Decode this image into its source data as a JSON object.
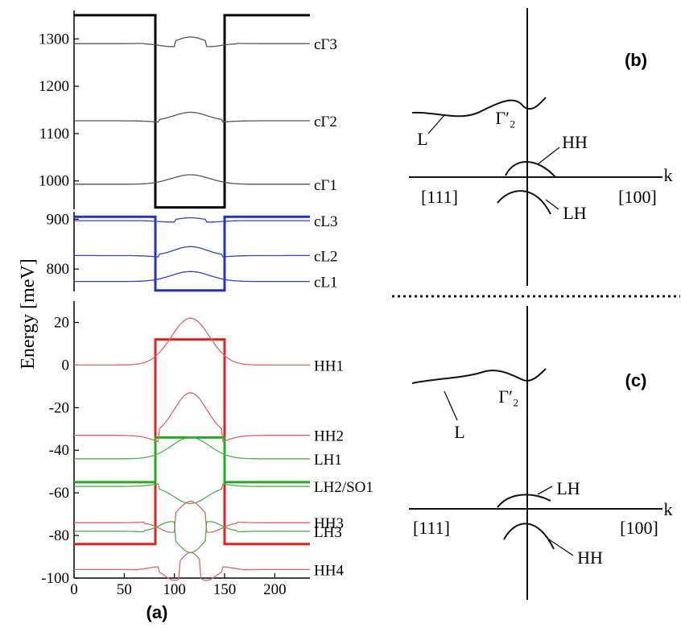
{
  "panel_labels": {
    "a": "(a)",
    "b": "(b)",
    "c": "(c)"
  },
  "chart_data": [
    {
      "type": "line",
      "ylabel": "Energy [meV]",
      "xlabel": "",
      "xlim": [
        0,
        235
      ],
      "x_ticks": [
        "0",
        "50",
        "100",
        "150",
        "200"
      ],
      "segments": [
        {
          "ylim": [
            940,
            1360
          ],
          "y_ticks": [
            "1000",
            "1100",
            "1200",
            "1300"
          ]
        },
        {
          "ylim": [
            755,
            915
          ],
          "y_ticks": [
            "800",
            "900"
          ]
        },
        {
          "ylim": [
            -100,
            30
          ],
          "y_ticks": [
            "20",
            "0",
            "-20",
            "-40",
            "-60",
            "-80",
            "-100"
          ]
        }
      ],
      "wells": [
        {
          "color": "#000000",
          "segment": 0,
          "x": [
            0,
            81,
            81,
            150,
            150,
            235
          ],
          "y": [
            1350,
            1350,
            944,
            944,
            1350,
            1350
          ]
        },
        {
          "color": "#2233bb",
          "segment": 1,
          "x": [
            0,
            81,
            81,
            150,
            150,
            235
          ],
          "y": [
            905,
            905,
            757,
            757,
            905,
            905
          ]
        },
        {
          "color": "#dd2222",
          "segment": 2,
          "x": [
            0,
            81,
            81,
            150,
            150,
            235
          ],
          "y": [
            -84,
            -84,
            12,
            12,
            -84,
            -84
          ]
        },
        {
          "color": "#22aa22",
          "segment": 2,
          "x": [
            0,
            81,
            81,
            150,
            150,
            235
          ],
          "y": [
            -55,
            -55,
            -34,
            -34,
            -55,
            -55
          ]
        }
      ],
      "levels": [
        {
          "label": "cΓ3",
          "segment": 0,
          "color": "#555555",
          "energy": 1290,
          "bump": 14,
          "osc": 3
        },
        {
          "label": "cΓ2",
          "segment": 0,
          "color": "#555555",
          "energy": 1127,
          "bump": 18,
          "osc": 2
        },
        {
          "label": "cΓ1",
          "segment": 0,
          "color": "#555555",
          "energy": 993,
          "bump": 20,
          "osc": 1
        },
        {
          "label": "cL3",
          "segment": 1,
          "color": "#3344bb",
          "energy": 897,
          "bump": 6,
          "osc": 3
        },
        {
          "label": "cL2",
          "segment": 1,
          "color": "#3344bb",
          "energy": 827,
          "bump": 18,
          "osc": 2
        },
        {
          "label": "cL1",
          "segment": 1,
          "color": "#3344bb",
          "energy": 775,
          "bump": 20,
          "osc": 1
        },
        {
          "label": "HH1",
          "segment": 2,
          "color": "#dd6666",
          "energy": 0,
          "bump": 22,
          "osc": 1
        },
        {
          "label": "HH2",
          "segment": 2,
          "color": "#dd6666",
          "energy": -33,
          "bump": 20,
          "osc": 2
        },
        {
          "label": "LH1",
          "segment": 2,
          "color": "#55aa55",
          "energy": -44,
          "bump": 10,
          "osc": 1
        },
        {
          "label": "LH2/SO1",
          "segment": 2,
          "color": "#55aa55",
          "energy": -57,
          "bump": -8,
          "osc": 2
        },
        {
          "label": "HH3",
          "segment": 2,
          "color": "#dd6666",
          "energy": -74,
          "bump": 10,
          "osc": 3
        },
        {
          "label": "LH3",
          "segment": 2,
          "color": "#55aa55",
          "energy": -78,
          "bump": -10,
          "osc": 3
        },
        {
          "label": "HH4",
          "segment": 2,
          "color": "#dd6666",
          "energy": -96,
          "bump": 8,
          "osc": 4
        }
      ]
    },
    {
      "type": "diagram",
      "panel": "(b)",
      "axis_label": "k",
      "left_direction": "[111]",
      "right_direction": "[100]",
      "labels": [
        "L",
        "Γ′₂",
        "HH",
        "LH"
      ]
    },
    {
      "type": "diagram",
      "panel": "(c)",
      "axis_label": "k",
      "left_direction": "[111]",
      "right_direction": "[100]",
      "labels": [
        "L",
        "Γ′₂",
        "LH",
        "HH"
      ]
    }
  ]
}
